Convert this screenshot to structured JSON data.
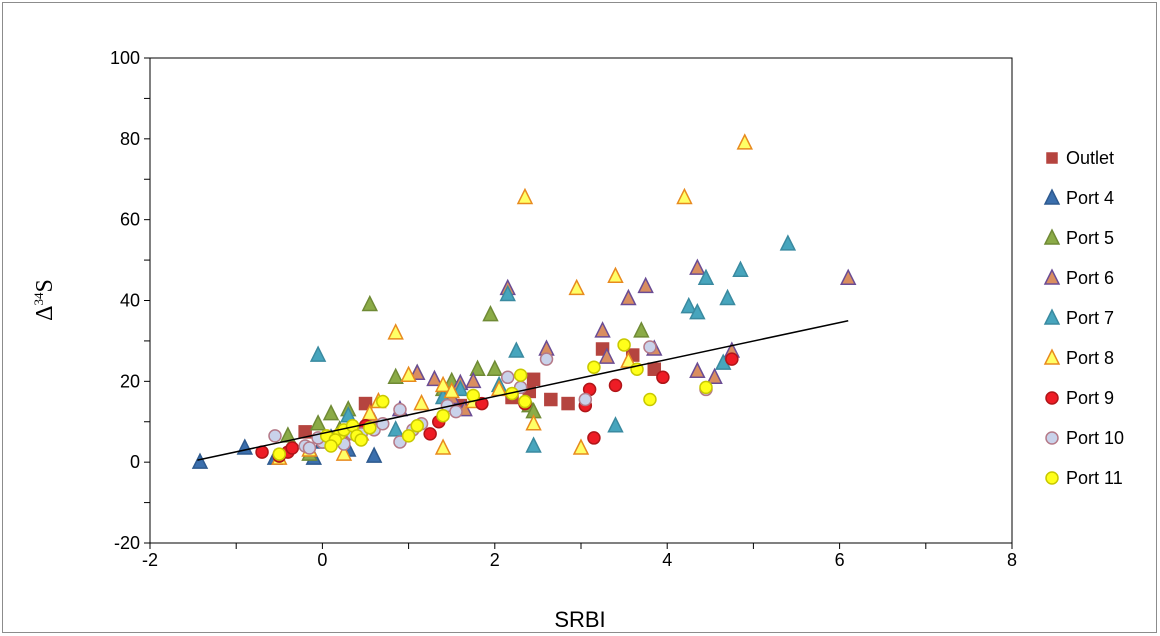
{
  "chart_data": {
    "type": "scatter",
    "xlabel": "SRBI",
    "ylabel": {
      "prefix": "Δ",
      "sup": "34",
      "suffix": "S"
    },
    "xlim": [
      -2,
      8
    ],
    "ylim": [
      -20,
      100
    ],
    "xticks": [
      "-2",
      "0",
      "2",
      "4",
      "6",
      "8"
    ],
    "yticks": [
      "-20",
      "0",
      "20",
      "40",
      "60",
      "80",
      "100"
    ],
    "grid": false,
    "legend_position": "right",
    "trendline": {
      "x": [
        -1.45,
        6.1
      ],
      "y": [
        0.5,
        35
      ]
    },
    "series": [
      {
        "name": "Outlet",
        "marker": "square",
        "fill": "#b5443f",
        "stroke": "#b5443f",
        "points": [
          [
            -0.2,
            7.5
          ],
          [
            0.5,
            14.5
          ],
          [
            1.6,
            14
          ],
          [
            2.2,
            16
          ],
          [
            2.4,
            17.5
          ],
          [
            2.45,
            20.5
          ],
          [
            2.65,
            15.5
          ],
          [
            2.85,
            14.5
          ],
          [
            3.25,
            28
          ],
          [
            3.6,
            26.5
          ],
          [
            3.85,
            23
          ],
          [
            0.15,
            6
          ]
        ]
      },
      {
        "name": "Port 4",
        "marker": "triangle",
        "fill": "#3b6fad",
        "stroke": "#2e5a8f",
        "points": [
          [
            -1.42,
            0
          ],
          [
            -0.9,
            3.5
          ],
          [
            -0.55,
            1
          ],
          [
            -0.1,
            1
          ],
          [
            0.0,
            5
          ],
          [
            0.3,
            3
          ],
          [
            0.6,
            1.5
          ],
          [
            0.55,
            9
          ],
          [
            0.1,
            6
          ]
        ]
      },
      {
        "name": "Port 5",
        "marker": "triangle",
        "fill": "#8bab47",
        "stroke": "#6f8a35",
        "points": [
          [
            -0.4,
            6.5
          ],
          [
            -0.05,
            9.5
          ],
          [
            0.1,
            12
          ],
          [
            0.3,
            13
          ],
          [
            0.55,
            39
          ],
          [
            0.85,
            21
          ],
          [
            1.1,
            22
          ],
          [
            1.4,
            18
          ],
          [
            1.8,
            23
          ],
          [
            2.0,
            23
          ],
          [
            2.4,
            14
          ],
          [
            2.45,
            12.5
          ],
          [
            3.7,
            32.5
          ],
          [
            1.95,
            36.5
          ],
          [
            1.5,
            20
          ],
          [
            0.2,
            8
          ],
          [
            -0.15,
            2
          ]
        ]
      },
      {
        "name": "Port 6",
        "marker": "triangle",
        "fill": "#d98e60",
        "stroke": "#6a4c94",
        "points": [
          [
            1.1,
            22
          ],
          [
            1.3,
            20.5
          ],
          [
            1.6,
            19.5
          ],
          [
            1.75,
            20
          ],
          [
            2.15,
            43
          ],
          [
            2.6,
            28
          ],
          [
            3.25,
            32.5
          ],
          [
            3.3,
            26
          ],
          [
            3.55,
            40.5
          ],
          [
            3.75,
            43.5
          ],
          [
            3.85,
            28
          ],
          [
            4.35,
            48
          ],
          [
            4.35,
            22.5
          ],
          [
            4.55,
            21
          ],
          [
            4.75,
            27.5
          ],
          [
            6.1,
            45.5
          ],
          [
            1.5,
            16
          ],
          [
            1.65,
            13
          ],
          [
            0.9,
            13
          ],
          [
            0.6,
            10
          ]
        ]
      },
      {
        "name": "Port 7",
        "marker": "triangle",
        "fill": "#47a5bd",
        "stroke": "#3a8aa0",
        "points": [
          [
            -0.05,
            26.5
          ],
          [
            0.3,
            11.5
          ],
          [
            0.85,
            8
          ],
          [
            1.4,
            16
          ],
          [
            1.6,
            18
          ],
          [
            2.05,
            19
          ],
          [
            2.15,
            41.5
          ],
          [
            2.25,
            27.5
          ],
          [
            2.45,
            4
          ],
          [
            3.4,
            9
          ],
          [
            4.25,
            38.5
          ],
          [
            4.35,
            37
          ],
          [
            4.45,
            45.5
          ],
          [
            4.7,
            40.5
          ],
          [
            4.85,
            47.5
          ],
          [
            5.4,
            54
          ],
          [
            4.65,
            24.5
          ]
        ]
      },
      {
        "name": "Port 8",
        "marker": "triangle",
        "fill": "#ffff66",
        "stroke": "#e88a1e",
        "points": [
          [
            -0.5,
            1
          ],
          [
            -0.15,
            3
          ],
          [
            0.25,
            2
          ],
          [
            0.55,
            12
          ],
          [
            0.65,
            15
          ],
          [
            0.85,
            32
          ],
          [
            1.0,
            21.5
          ],
          [
            1.15,
            14.5
          ],
          [
            1.4,
            19
          ],
          [
            1.5,
            17.5
          ],
          [
            1.4,
            3.5
          ],
          [
            2.05,
            18
          ],
          [
            2.35,
            65.5
          ],
          [
            2.45,
            9.5
          ],
          [
            2.95,
            43
          ],
          [
            3.0,
            3.5
          ],
          [
            3.4,
            46
          ],
          [
            3.55,
            25
          ],
          [
            4.2,
            65.5
          ],
          [
            4.9,
            79
          ],
          [
            1.75,
            15
          ],
          [
            0.45,
            7
          ]
        ]
      },
      {
        "name": "Port 9",
        "marker": "circle",
        "fill": "#ee1c25",
        "stroke": "#b01518",
        "points": [
          [
            -0.7,
            2.5
          ],
          [
            -0.5,
            1.5
          ],
          [
            -0.4,
            2.5
          ],
          [
            -0.35,
            3.5
          ],
          [
            1.25,
            7
          ],
          [
            1.35,
            10
          ],
          [
            1.85,
            14.5
          ],
          [
            2.35,
            14.5
          ],
          [
            3.05,
            14
          ],
          [
            3.1,
            18
          ],
          [
            3.15,
            6
          ],
          [
            3.4,
            19
          ],
          [
            3.95,
            21
          ],
          [
            4.75,
            25.5
          ],
          [
            0.5,
            9
          ],
          [
            0.3,
            7
          ]
        ]
      },
      {
        "name": "Port 10",
        "marker": "circle",
        "fill": "#c9d2ea",
        "stroke": "#b57a88",
        "points": [
          [
            -0.55,
            6.5
          ],
          [
            -0.2,
            4
          ],
          [
            -0.15,
            3.5
          ],
          [
            0.0,
            5
          ],
          [
            0.1,
            5.5
          ],
          [
            0.2,
            6
          ],
          [
            0.35,
            7
          ],
          [
            0.45,
            7
          ],
          [
            0.6,
            8
          ],
          [
            0.7,
            9.5
          ],
          [
            0.9,
            5
          ],
          [
            0.9,
            13
          ],
          [
            1.05,
            8
          ],
          [
            1.15,
            9.5
          ],
          [
            1.45,
            14
          ],
          [
            1.55,
            12.5
          ],
          [
            2.15,
            21
          ],
          [
            2.3,
            18.5
          ],
          [
            2.6,
            25.5
          ],
          [
            3.05,
            15.5
          ],
          [
            3.8,
            28.5
          ],
          [
            4.45,
            18
          ],
          [
            0.25,
            4.5
          ],
          [
            -0.05,
            6
          ]
        ]
      },
      {
        "name": "Port 11",
        "marker": "circle",
        "fill": "#ffff1a",
        "stroke": "#c8c800",
        "points": [
          [
            -0.5,
            2
          ],
          [
            0.05,
            6.5
          ],
          [
            0.2,
            7
          ],
          [
            0.25,
            8
          ],
          [
            0.35,
            9
          ],
          [
            0.4,
            6.5
          ],
          [
            0.45,
            5.5
          ],
          [
            0.55,
            8.5
          ],
          [
            0.7,
            15
          ],
          [
            1.0,
            6.5
          ],
          [
            1.1,
            9
          ],
          [
            1.4,
            11.5
          ],
          [
            1.75,
            16.5
          ],
          [
            2.2,
            17
          ],
          [
            2.3,
            21.5
          ],
          [
            2.35,
            15
          ],
          [
            3.15,
            23.5
          ],
          [
            3.5,
            29
          ],
          [
            3.65,
            23
          ],
          [
            3.8,
            15.5
          ],
          [
            4.45,
            18.5
          ],
          [
            0.15,
            5.5
          ],
          [
            0.1,
            4
          ]
        ]
      }
    ]
  }
}
